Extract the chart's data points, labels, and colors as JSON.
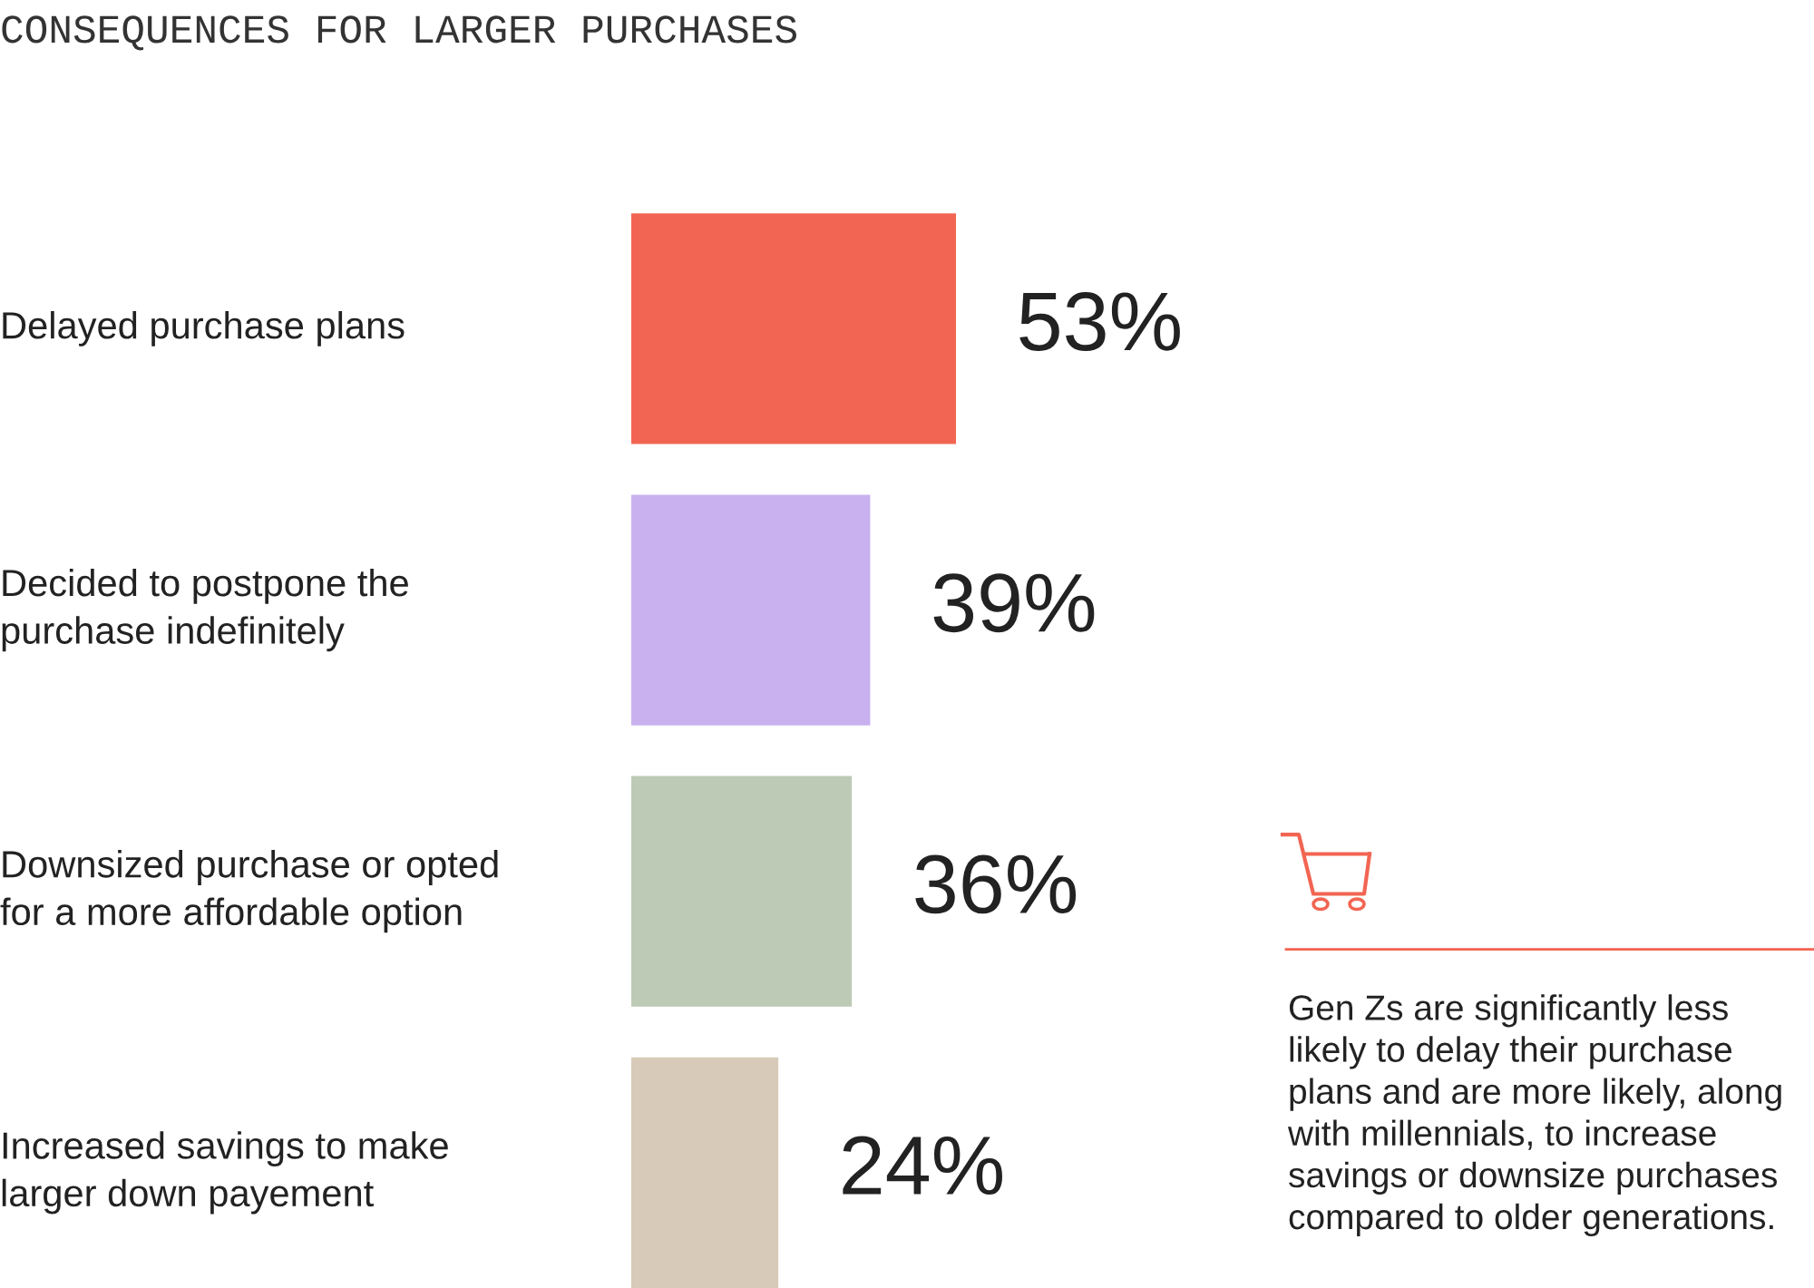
{
  "chart_data": {
    "type": "bar",
    "orientation": "horizontal",
    "title": "CONSEQUENCES FOR LARGER PURCHASES",
    "categories": [
      "Delayed purchase plans",
      "Decided to postpone the\npurchase indefinitely",
      "Downsized purchase or opted\nfor a more affordable option",
      "Increased savings to make\nlarger down payement"
    ],
    "values": [
      53,
      39,
      36,
      24
    ],
    "colors": [
      "#f26552",
      "#c9b1f0",
      "#bccab6",
      "#d8cab8"
    ],
    "value_labels": [
      "53%",
      "39%",
      "36%",
      "24%"
    ],
    "tick_labels": false,
    "annotations": [
      "Gen Zs are significantly less\nlikely to delay their purchase\nplans and are more likely, along\nwith millennials, to increase\nsavings or downsize purchases\ncompared to older generations."
    ]
  }
}
